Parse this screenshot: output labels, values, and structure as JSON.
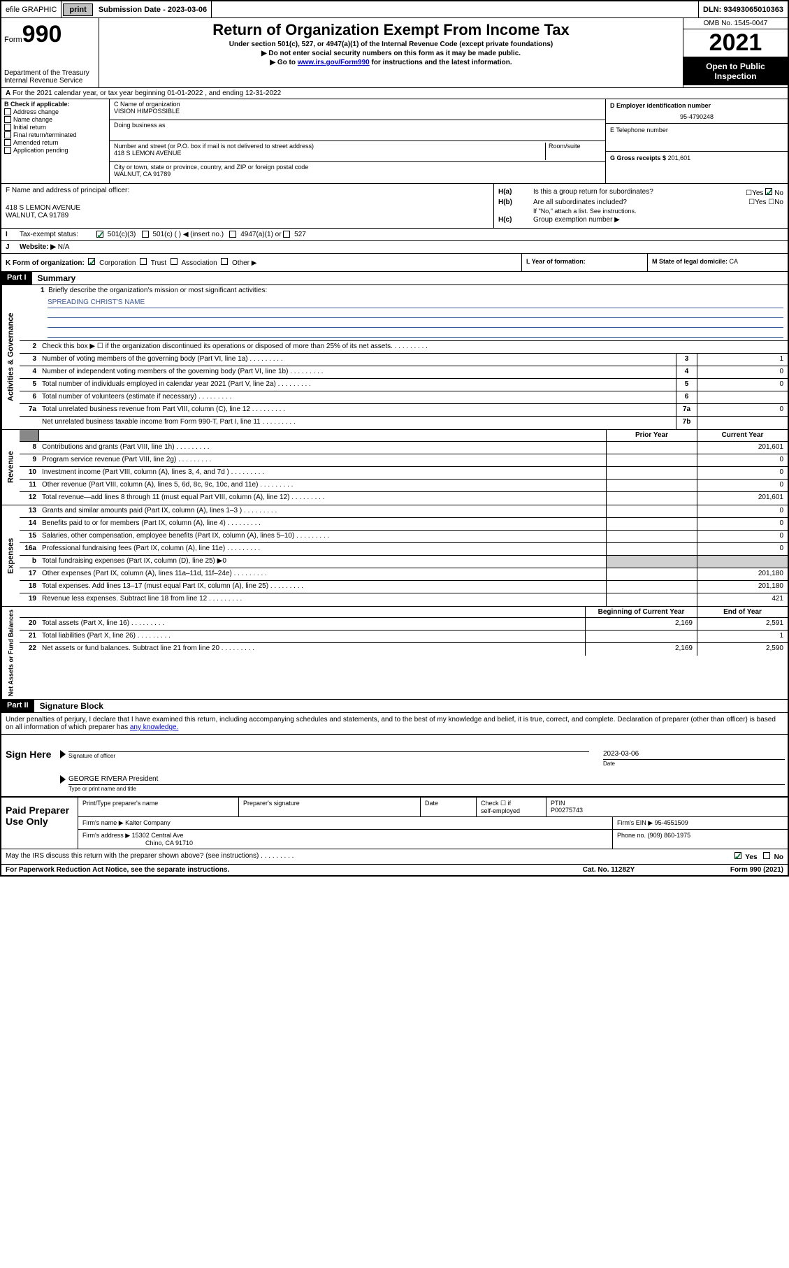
{
  "topbar": {
    "efile": "efile GRAPHIC",
    "print": "print",
    "sub_label": "Submission Date - 2023-03-06",
    "dln_label": "DLN: 93493065010363"
  },
  "header": {
    "form": "Form",
    "form_num": "990",
    "dept": "Department of the Treasury",
    "irs": "Internal Revenue Service",
    "title": "Return of Organization Exempt From Income Tax",
    "sub1": "Under section 501(c), 527, or 4947(a)(1) of the Internal Revenue Code (except private foundations)",
    "sub2": "▶ Do not enter social security numbers on this form as it may be made public.",
    "sub3_a": "▶ Go to ",
    "sub3_link": "www.irs.gov/Form990",
    "sub3_b": " for instructions and the latest information.",
    "omb": "OMB No. 1545-0047",
    "year": "2021",
    "inspection": "Open to Public Inspection"
  },
  "a_row": "For the 2021 calendar year, or tax year beginning 01-01-2022   , and ending 12-31-2022",
  "b": {
    "label": "B Check if applicable:",
    "opts": [
      "Address change",
      "Name change",
      "Initial return",
      "Final return/terminated",
      "Amended return",
      "Application pending"
    ]
  },
  "c": {
    "name_label": "C Name of organization",
    "name": "VISION HIMPOSSIBLE",
    "dba_label": "Doing business as",
    "addr_label": "Number and street (or P.O. box if mail is not delivered to street address)",
    "room_label": "Room/suite",
    "addr": "418 S LEMON AVENUE",
    "city_label": "City or town, state or province, country, and ZIP or foreign postal code",
    "city": "WALNUT, CA  91789"
  },
  "d": {
    "label": "D Employer identification number",
    "val": "95-4790248"
  },
  "e": {
    "label": "E Telephone number"
  },
  "g": {
    "label": "G Gross receipts $",
    "val": "201,601"
  },
  "f": {
    "label": "F  Name and address of principal officer:",
    "addr1": "418 S LEMON AVENUE",
    "addr2": "WALNUT, CA  91789"
  },
  "h": {
    "a_label": "H(a)",
    "a_text": "Is this a group return for subordinates?",
    "b_label": "H(b)",
    "b_text": "Are all subordinates included?",
    "note": "If \"No,\" attach a list. See instructions.",
    "c_label": "H(c)",
    "c_text": "Group exemption number ▶",
    "yes": "Yes",
    "no": "No"
  },
  "i": {
    "label": "I",
    "text": "Tax-exempt status:",
    "o1": "501(c)(3)",
    "o2": "501(c) (  ) ◀ (insert no.)",
    "o3": "4947(a)(1) or",
    "o4": "527"
  },
  "j": {
    "label": "J",
    "text": "Website: ▶",
    "val": "N/A"
  },
  "k": {
    "label": "K Form of organization:",
    "o1": "Corporation",
    "o2": "Trust",
    "o3": "Association",
    "o4": "Other ▶",
    "l_label": "L Year of formation:",
    "m_label": "M State of legal domicile:",
    "m_val": "CA"
  },
  "part1": {
    "header": "Part I",
    "title": "Summary"
  },
  "mission_label": "Briefly describe the organization's mission or most significant activities:",
  "mission": "SPREADING CHRIST'S NAME",
  "gov_lines": [
    {
      "n": "2",
      "t": "Check this box ▶ ☐  if the organization discontinued its operations or disposed of more than 25% of its net assets."
    },
    {
      "n": "3",
      "t": "Number of voting members of the governing body (Part VI, line 1a)",
      "box": "3",
      "v": "1"
    },
    {
      "n": "4",
      "t": "Number of independent voting members of the governing body (Part VI, line 1b)",
      "box": "4",
      "v": "0"
    },
    {
      "n": "5",
      "t": "Total number of individuals employed in calendar year 2021 (Part V, line 2a)",
      "box": "5",
      "v": "0"
    },
    {
      "n": "6",
      "t": "Total number of volunteers (estimate if necessary)",
      "box": "6",
      "v": ""
    },
    {
      "n": "7a",
      "t": "Total unrelated business revenue from Part VIII, column (C), line 12",
      "box": "7a",
      "v": "0"
    },
    {
      "n": "",
      "t": "Net unrelated business taxable income from Form 990-T, Part I, line 11",
      "box": "7b",
      "v": ""
    }
  ],
  "yh": {
    "prior": "Prior Year",
    "current": "Current Year",
    "begin": "Beginning of Current Year",
    "end": "End of Year"
  },
  "rev_lines": [
    {
      "n": "8",
      "t": "Contributions and grants (Part VIII, line 1h)",
      "p": "",
      "c": "201,601"
    },
    {
      "n": "9",
      "t": "Program service revenue (Part VIII, line 2g)",
      "p": "",
      "c": "0"
    },
    {
      "n": "10",
      "t": "Investment income (Part VIII, column (A), lines 3, 4, and 7d )",
      "p": "",
      "c": "0"
    },
    {
      "n": "11",
      "t": "Other revenue (Part VIII, column (A), lines 5, 6d, 8c, 9c, 10c, and 11e)",
      "p": "",
      "c": "0"
    },
    {
      "n": "12",
      "t": "Total revenue—add lines 8 through 11 (must equal Part VIII, column (A), line 12)",
      "p": "",
      "c": "201,601"
    }
  ],
  "exp_lines": [
    {
      "n": "13",
      "t": "Grants and similar amounts paid (Part IX, column (A), lines 1–3 )",
      "p": "",
      "c": "0"
    },
    {
      "n": "14",
      "t": "Benefits paid to or for members (Part IX, column (A), line 4)",
      "p": "",
      "c": "0"
    },
    {
      "n": "15",
      "t": "Salaries, other compensation, employee benefits (Part IX, column (A), lines 5–10)",
      "p": "",
      "c": "0"
    },
    {
      "n": "16a",
      "t": "Professional fundraising fees (Part IX, column (A), line 11e)",
      "p": "",
      "c": "0"
    },
    {
      "n": "b",
      "t": "Total fundraising expenses (Part IX, column (D), line 25) ▶0",
      "shaded": true
    },
    {
      "n": "17",
      "t": "Other expenses (Part IX, column (A), lines 11a–11d, 11f–24e)",
      "p": "",
      "c": "201,180"
    },
    {
      "n": "18",
      "t": "Total expenses. Add lines 13–17 (must equal Part IX, column (A), line 25)",
      "p": "",
      "c": "201,180"
    },
    {
      "n": "19",
      "t": "Revenue less expenses. Subtract line 18 from line 12",
      "p": "",
      "c": "421"
    }
  ],
  "net_lines": [
    {
      "n": "20",
      "t": "Total assets (Part X, line 16)",
      "p": "2,169",
      "c": "2,591"
    },
    {
      "n": "21",
      "t": "Total liabilities (Part X, line 26)",
      "p": "",
      "c": "1"
    },
    {
      "n": "22",
      "t": "Net assets or fund balances. Subtract line 21 from line 20",
      "p": "2,169",
      "c": "2,590"
    }
  ],
  "part2": {
    "header": "Part II",
    "title": "Signature Block"
  },
  "sig_decl": "Under penalties of perjury, I declare that I have examined this return, including accompanying schedules and statements, and to the best of my knowledge and belief, it is true, correct, and complete. Declaration of preparer (other than officer) is based on all information of which preparer has ",
  "sig_link": "any knowledge.",
  "sign": {
    "here": "Sign Here",
    "sig_label": "Signature of officer",
    "date_label": "Date",
    "date": "2023-03-06",
    "name": "GEORGE RIVERA  President",
    "name_label": "Type or print name and title"
  },
  "paid": {
    "left": "Paid Preparer Use Only",
    "h1": "Print/Type preparer's name",
    "h2": "Preparer's signature",
    "h3": "Date",
    "h4a": "Check ☐ if",
    "h4b": "self-employed",
    "h5": "PTIN",
    "ptin": "P00275743",
    "firm_name_l": "Firm's name   ▶",
    "firm_name": "Kalter Company",
    "firm_ein_l": "Firm's EIN ▶",
    "firm_ein": "95-4551509",
    "firm_addr_l": "Firm's address ▶",
    "firm_addr1": "15302 Central Ave",
    "firm_addr2": "Chino, CA  91710",
    "phone_l": "Phone no.",
    "phone": "(909) 860-1975"
  },
  "footer": {
    "discuss": "May the IRS discuss this return with the preparer shown above? (see instructions)",
    "yes": "Yes",
    "no": "No",
    "paperwork": "For Paperwork Reduction Act Notice, see the separate instructions.",
    "cat": "Cat. No. 11282Y",
    "form": "Form 990 (2021)"
  },
  "vlabels": {
    "gov": "Activities & Governance",
    "rev": "Revenue",
    "exp": "Expenses",
    "net": "Net Assets or Fund Balances"
  }
}
